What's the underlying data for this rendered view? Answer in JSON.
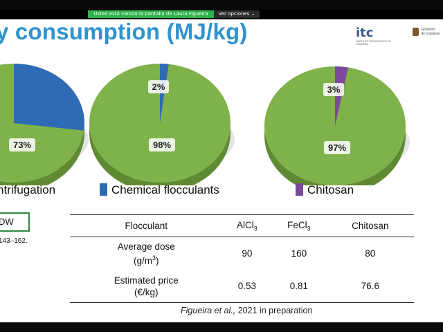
{
  "meeting": {
    "share_banner": "Usted está viendo la pantalla de Laura Figueira",
    "view_options": "Ver opciones"
  },
  "slide": {
    "title": "y consumption (MJ/kg)",
    "logo_itc": {
      "text": "itc",
      "subtitle": "INSTITUTO TECNOLÓGICO DE CANARIAS"
    },
    "logo_gob": {
      "line1": "Gobierno",
      "line2": "de Canarias"
    },
    "pies": [
      {
        "main_label": "73%",
        "minor_label": "",
        "main_value": 73,
        "minor_value": 27,
        "minor_color": "#2e6bb5"
      },
      {
        "main_label": "98%",
        "minor_label": "2%",
        "main_value": 98,
        "minor_value": 2,
        "minor_color": "#2e6bb5"
      },
      {
        "main_label": "97%",
        "minor_label": "3%",
        "main_value": 97,
        "minor_value": 3,
        "minor_color": "#7b4a9b"
      }
    ],
    "pie_main_color": "#7fb24a",
    "legend": [
      {
        "label": "ntrifugation",
        "color": "#7fb24a"
      },
      {
        "label": "Chemical flocculants",
        "color": "#2e6bb5"
      },
      {
        "label": "Chitosan",
        "color": "#7b4a9b"
      }
    ],
    "dw_box": "DW",
    "ref_pages": "143–162.",
    "table": {
      "header": [
        "Flocculant",
        "AlCl",
        "FeCl",
        "Chitosan"
      ],
      "header_sub": [
        "",
        "3",
        "3",
        ""
      ],
      "rows": [
        {
          "label_line1": "Average dose",
          "label_line2": "(g/m",
          "label_sup": "3",
          "label_tail": ")",
          "values": [
            "90",
            "160",
            "80"
          ]
        },
        {
          "label_line1": "Estimated price",
          "label_line2": "(€/kg)",
          "label_sup": "",
          "label_tail": "",
          "values": [
            "0.53",
            "0.81",
            "76.6"
          ]
        }
      ]
    },
    "citation": {
      "authors": "Figueira et al.,",
      "rest": " 2021 in preparation"
    }
  }
}
